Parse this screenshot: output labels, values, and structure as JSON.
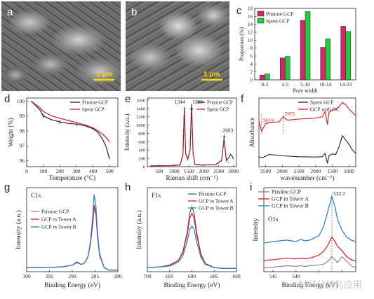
{
  "panel_letters": {
    "a": "a",
    "b": "b",
    "c": "c",
    "d": "d",
    "e": "e",
    "f": "f",
    "g": "g",
    "h": "h",
    "i": "i"
  },
  "sem": {
    "a": {
      "scale_label": "1 μm"
    },
    "b": {
      "scale_label": "1 μm"
    }
  },
  "watermark": "材料分析与应用",
  "colors": {
    "pink": "#d6246e",
    "green": "#1fcc3a",
    "black": "#222222",
    "red": "#e3161b",
    "blue": "#1f7fd6",
    "gray": "#8a8a8a"
  },
  "chart_data": [
    {
      "id": "c",
      "type": "bar",
      "xlabel": "Pore width",
      "ylabel": "Proportion (%)",
      "categories": [
        "0-2",
        "2-5",
        "5-10",
        "10-14",
        "14-23"
      ],
      "ylim": [
        0,
        18
      ],
      "yticks": [
        0,
        2,
        4,
        6,
        8,
        10,
        12,
        14,
        16,
        18
      ],
      "legend_position": "top-left",
      "series": [
        {
          "name": "Pristine GCP",
          "color": "#d6246e",
          "values": [
            1.2,
            5.5,
            15.0,
            8.2,
            13.5
          ]
        },
        {
          "name": "Spent GCP",
          "color": "#1fcc3a",
          "values": [
            1.5,
            5.9,
            17.2,
            10.3,
            12.2
          ]
        }
      ]
    },
    {
      "id": "d",
      "type": "line",
      "xlabel": "Temperature (°C)",
      "ylabel": "Weight (%)",
      "xlim": [
        0,
        550
      ],
      "ylim": [
        95.6,
        100.2
      ],
      "xticks": [
        0,
        100,
        200,
        300,
        400,
        500
      ],
      "yticks": [
        96,
        97,
        98,
        99,
        100
      ],
      "legend_position": "top-right",
      "series": [
        {
          "name": "Pristine GCP",
          "color": "#222222",
          "x": [
            25,
            50,
            80,
            100,
            150,
            200,
            250,
            300,
            350,
            400,
            430,
            460,
            480,
            500
          ],
          "y": [
            100.0,
            99.75,
            99.4,
            99.0,
            98.75,
            98.6,
            98.5,
            98.45,
            98.35,
            98.15,
            97.9,
            97.4,
            96.9,
            96.1
          ]
        },
        {
          "name": "Spent GCP",
          "color": "#e3161b",
          "x": [
            25,
            50,
            80,
            100,
            150,
            200,
            250,
            300,
            350,
            400,
            430,
            460,
            480,
            500
          ],
          "y": [
            100.0,
            99.8,
            99.55,
            99.3,
            99.0,
            98.85,
            98.7,
            98.55,
            98.4,
            98.2,
            98.0,
            97.75,
            97.55,
            97.25
          ]
        }
      ]
    },
    {
      "id": "e",
      "type": "line",
      "xlabel": "Raman shift (cm⁻¹)",
      "ylabel": "Intensity (a.u.)",
      "xlim": [
        100,
        3100
      ],
      "ylim": [
        0,
        1650
      ],
      "xticks": [
        500,
        1000,
        1500,
        2000,
        2500,
        3000
      ],
      "yticks": [
        0,
        200,
        400,
        600,
        800,
        1000,
        1200,
        1400,
        1600
      ],
      "legend_position": "top-right",
      "annotations": [
        "1344",
        "1589",
        "2683"
      ],
      "series": [
        {
          "name": "Pristine GCP",
          "color": "#222222",
          "x": [
            200,
            800,
            1200,
            1300,
            1344,
            1390,
            1460,
            1540,
            1589,
            1640,
            1700,
            1900,
            2400,
            2600,
            2683,
            2760,
            2850,
            2900,
            2950,
            3000
          ],
          "y": [
            20,
            25,
            40,
            300,
            1430,
            320,
            180,
            420,
            1510,
            330,
            60,
            40,
            50,
            150,
            680,
            150,
            220,
            300,
            260,
            180
          ]
        },
        {
          "name": "Spent GCP",
          "color": "#e3161b",
          "x": [
            200,
            800,
            1200,
            1300,
            1344,
            1390,
            1460,
            1540,
            1589,
            1640,
            1700,
            1900,
            2400,
            2600,
            2683,
            2760,
            2850
          ],
          "y": [
            15,
            20,
            35,
            280,
            1400,
            300,
            170,
            400,
            1480,
            310,
            55,
            35,
            45,
            140,
            650,
            140,
            90
          ]
        }
      ]
    },
    {
      "id": "f",
      "type": "line",
      "xlabel": "wavenumber (cm⁻¹)",
      "ylabel": "Absorbance",
      "xlim": [
        3700,
        800
      ],
      "xticks": [
        3500,
        3000,
        2500,
        2000,
        1500,
        1000
      ],
      "legend_position": "top-right",
      "annotations": [
        "3619",
        "2975"
      ],
      "series": [
        {
          "name": "Spent GCP",
          "color": "#222222",
          "x": [
            3700,
            3600,
            3400,
            3200,
            3000,
            2800,
            2500,
            2200,
            2000,
            1800,
            1720,
            1650,
            1600,
            1500,
            1400,
            1300,
            1200,
            1100,
            1000,
            900,
            800
          ],
          "y": [
            0.3,
            0.2,
            0.5,
            0.45,
            0.38,
            0.35,
            0.3,
            0.28,
            0.27,
            0.3,
            0.6,
            -0.3,
            0.4,
            0.55,
            0.5,
            1.2,
            2.2,
            1.8,
            1.4,
            0.9,
            0.6
          ]
        },
        {
          "name": "GCP with OC",
          "color": "#e3161b",
          "x": [
            3700,
            3619,
            3500,
            3300,
            3100,
            2975,
            2850,
            2500,
            2200,
            2000,
            1800,
            1720,
            1650,
            1600,
            1500,
            1400,
            1300,
            1200,
            1100,
            1000,
            900,
            800
          ],
          "y": [
            3.5,
            2.6,
            3.3,
            3.4,
            3.45,
            3.9,
            3.6,
            3.7,
            3.75,
            3.8,
            3.9,
            4.4,
            3.2,
            4.3,
            4.5,
            4.6,
            4.8,
            5.2,
            5.0,
            4.6,
            4.3,
            4.0
          ]
        }
      ]
    },
    {
      "id": "g",
      "type": "line",
      "xlabel": "Binding Energy (eV)",
      "ylabel": "Intensity (a.u.)",
      "xlim": [
        300,
        280
      ],
      "xticks": [
        300,
        295,
        290,
        285,
        280
      ],
      "legend_position": "top-left",
      "annotations": [
        "C1s"
      ],
      "series": [
        {
          "name": "Pristine GCP",
          "color": "#8a8a8a",
          "x": [
            300,
            296,
            292,
            290,
            289,
            288,
            287.5,
            287,
            286.5,
            286,
            285.5,
            285.2,
            284.8,
            284.5,
            284,
            283,
            282,
            280
          ],
          "y": [
            0.05,
            0.05,
            0.06,
            0.08,
            0.12,
            0.09,
            0.1,
            0.13,
            0.2,
            0.35,
            0.6,
            0.78,
            0.7,
            0.45,
            0.2,
            0.05,
            0.02,
            0.02
          ]
        },
        {
          "name": "GCP in Tower A",
          "color": "#e3161b",
          "x": [
            300,
            296,
            292,
            290,
            289,
            288,
            287.5,
            287,
            286.5,
            286,
            285.5,
            285.2,
            284.8,
            284.5,
            284,
            283,
            282,
            280
          ],
          "y": [
            0.05,
            0.05,
            0.06,
            0.08,
            0.12,
            0.09,
            0.1,
            0.13,
            0.2,
            0.35,
            0.62,
            0.82,
            0.72,
            0.45,
            0.2,
            0.05,
            0.02,
            0.02
          ]
        },
        {
          "name": "GCP in Tower B",
          "color": "#1f7fd6",
          "x": [
            300,
            296,
            292,
            290,
            289,
            288,
            287.5,
            287,
            286.5,
            286,
            285.5,
            285.2,
            284.8,
            284.5,
            284,
            283,
            282,
            280
          ],
          "y": [
            0.05,
            0.05,
            0.06,
            0.08,
            0.11,
            0.09,
            0.1,
            0.13,
            0.2,
            0.38,
            0.7,
            0.95,
            0.8,
            0.5,
            0.22,
            0.05,
            0.02,
            0.02
          ]
        }
      ]
    },
    {
      "id": "h",
      "type": "line",
      "xlabel": "Binding Energy (eV)",
      "ylabel": "Intensity (a.u.)",
      "xlim": [
        700,
        680
      ],
      "xticks": [
        700,
        695,
        690,
        685,
        680
      ],
      "legend_position": "top-right",
      "annotations": [
        "F1s"
      ],
      "series": [
        {
          "name": "Pristine GCP",
          "color": "#555555",
          "x": [
            700,
            697,
            695,
            693,
            692,
            691,
            690.5,
            690,
            689.5,
            689,
            688,
            687,
            685,
            683,
            680
          ],
          "y": [
            0.05,
            0.06,
            0.08,
            0.14,
            0.25,
            0.5,
            0.72,
            0.8,
            0.72,
            0.5,
            0.22,
            0.1,
            0.05,
            0.04,
            0.04
          ]
        },
        {
          "name": "GCP in Tower A",
          "color": "#e3161b",
          "x": [
            700,
            697,
            695,
            693,
            692,
            691,
            690.5,
            690,
            689.5,
            689,
            688,
            687,
            685,
            683,
            680
          ],
          "y": [
            0.05,
            0.06,
            0.08,
            0.14,
            0.24,
            0.47,
            0.66,
            0.72,
            0.66,
            0.47,
            0.21,
            0.1,
            0.05,
            0.04,
            0.04
          ]
        },
        {
          "name": "GCP in Tower B",
          "color": "#1f7fd6",
          "x": [
            700,
            697,
            695,
            693,
            692,
            691,
            690.5,
            690,
            689.5,
            689,
            688,
            687,
            685,
            683,
            680
          ],
          "y": [
            0.05,
            0.06,
            0.07,
            0.12,
            0.2,
            0.38,
            0.52,
            0.56,
            0.52,
            0.38,
            0.18,
            0.09,
            0.05,
            0.04,
            0.04
          ]
        }
      ]
    },
    {
      "id": "i",
      "type": "line",
      "xlabel": "Binding Energy (eV)",
      "ylabel": "Intensity",
      "xlim": [
        547,
        527
      ],
      "xticks": [
        545,
        540,
        535,
        530
      ],
      "xticklabels_visible": [
        "545",
        "540",
        "",
        ""
      ],
      "legend_position": "top-left",
      "annotations": [
        "O1s",
        "532.2"
      ],
      "series": [
        {
          "name": "Pristine GCP",
          "color": "#8a8a8a",
          "x": [
            547,
            545,
            542,
            540,
            539,
            538,
            537,
            535,
            534,
            533,
            532.2,
            531.5,
            531,
            530,
            529,
            528,
            527
          ],
          "y": [
            0.05,
            0.06,
            0.08,
            0.07,
            0.08,
            0.07,
            0.08,
            0.09,
            0.1,
            0.14,
            0.2,
            0.16,
            0.12,
            0.2,
            0.14,
            0.08,
            0.05
          ]
        },
        {
          "name": "GCP in Tower A",
          "color": "#e3161b",
          "x": [
            547,
            545,
            542,
            540,
            539,
            538,
            537,
            535,
            534,
            533,
            532.2,
            531.5,
            531,
            530,
            529,
            528,
            527
          ],
          "y": [
            0.15,
            0.16,
            0.18,
            0.17,
            0.18,
            0.17,
            0.18,
            0.22,
            0.27,
            0.36,
            0.46,
            0.4,
            0.34,
            0.28,
            0.2,
            0.16,
            0.14
          ]
        },
        {
          "name": "GCP in Tower B",
          "color": "#1f7fd6",
          "x": [
            547,
            545,
            542,
            540,
            539,
            538,
            537,
            535,
            534,
            533,
            532.2,
            531.5,
            531,
            530,
            529,
            528,
            527
          ],
          "y": [
            0.38,
            0.4,
            0.42,
            0.4,
            0.43,
            0.41,
            0.42,
            0.48,
            0.6,
            0.82,
            1.0,
            0.86,
            0.7,
            0.55,
            0.46,
            0.42,
            0.4
          ]
        }
      ]
    }
  ]
}
